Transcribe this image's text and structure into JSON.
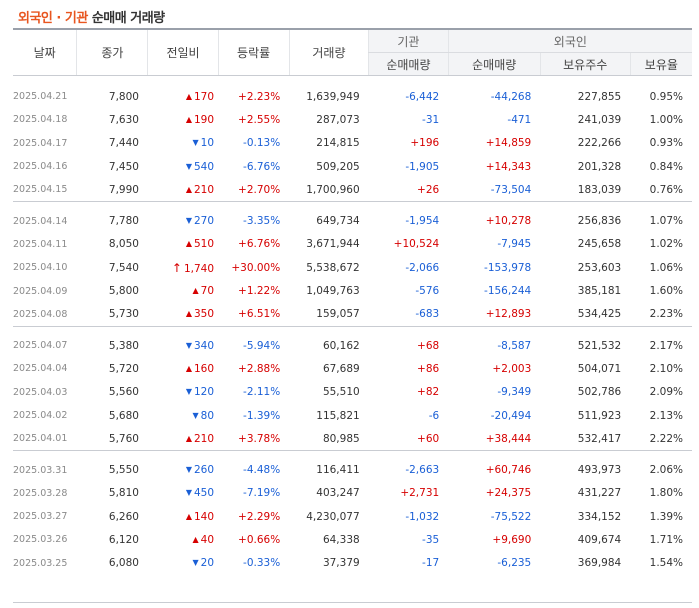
{
  "title": {
    "foreign_inst": "외국인 · 기관",
    "rest": "순매매 거래량"
  },
  "header": {
    "date": "날짜",
    "close": "종가",
    "change": "전일비",
    "rate": "등락률",
    "volume": "거래량",
    "institution": "기관",
    "foreign": "외국인",
    "inst_net": "순매매량",
    "foreign_net": "순매매량",
    "foreign_hold": "보유주수",
    "foreign_ratio": "보유율"
  },
  "colors": {
    "up": "#d60000",
    "down": "#1a5fd6",
    "title_accent": "#e8551f"
  },
  "icons": {
    "up": "triangle-up-icon",
    "down": "triangle-down-icon",
    "upper_limit": "upper-limit-arrow-icon"
  },
  "groups": [
    [
      {
        "date": "2025.04.21",
        "close": "7,800",
        "dir": "up",
        "change": "170",
        "rate": "+2.23%",
        "volume": "1,639,949",
        "inst": "-6,442",
        "foreign": "-44,268",
        "hold": "227,855",
        "ratio": "0.95%"
      },
      {
        "date": "2025.04.18",
        "close": "7,630",
        "dir": "up",
        "change": "190",
        "rate": "+2.55%",
        "volume": "287,073",
        "inst": "-31",
        "foreign": "-471",
        "hold": "241,039",
        "ratio": "1.00%"
      },
      {
        "date": "2025.04.17",
        "close": "7,440",
        "dir": "down",
        "change": "10",
        "rate": "-0.13%",
        "volume": "214,815",
        "inst": "+196",
        "foreign": "+14,859",
        "hold": "222,266",
        "ratio": "0.93%"
      },
      {
        "date": "2025.04.16",
        "close": "7,450",
        "dir": "down",
        "change": "540",
        "rate": "-6.76%",
        "volume": "509,205",
        "inst": "-1,905",
        "foreign": "+14,343",
        "hold": "201,328",
        "ratio": "0.84%"
      },
      {
        "date": "2025.04.15",
        "close": "7,990",
        "dir": "up",
        "change": "210",
        "rate": "+2.70%",
        "volume": "1,700,960",
        "inst": "+26",
        "foreign": "-73,504",
        "hold": "183,039",
        "ratio": "0.76%"
      }
    ],
    [
      {
        "date": "2025.04.14",
        "close": "7,780",
        "dir": "down",
        "change": "270",
        "rate": "-3.35%",
        "volume": "649,734",
        "inst": "-1,954",
        "foreign": "+10,278",
        "hold": "256,836",
        "ratio": "1.07%"
      },
      {
        "date": "2025.04.11",
        "close": "8,050",
        "dir": "up",
        "change": "510",
        "rate": "+6.76%",
        "volume": "3,671,944",
        "inst": "+10,524",
        "foreign": "-7,945",
        "hold": "245,658",
        "ratio": "1.02%"
      },
      {
        "date": "2025.04.10",
        "close": "7,540",
        "dir": "limit",
        "change": "1,740",
        "rate": "+30.00%",
        "volume": "5,538,672",
        "inst": "-2,066",
        "foreign": "-153,978",
        "hold": "253,603",
        "ratio": "1.06%"
      },
      {
        "date": "2025.04.09",
        "close": "5,800",
        "dir": "up",
        "change": "70",
        "rate": "+1.22%",
        "volume": "1,049,763",
        "inst": "-576",
        "foreign": "-156,244",
        "hold": "385,181",
        "ratio": "1.60%"
      },
      {
        "date": "2025.04.08",
        "close": "5,730",
        "dir": "up",
        "change": "350",
        "rate": "+6.51%",
        "volume": "159,057",
        "inst": "-683",
        "foreign": "+12,893",
        "hold": "534,425",
        "ratio": "2.23%"
      }
    ],
    [
      {
        "date": "2025.04.07",
        "close": "5,380",
        "dir": "down",
        "change": "340",
        "rate": "-5.94%",
        "volume": "60,162",
        "inst": "+68",
        "foreign": "-8,587",
        "hold": "521,532",
        "ratio": "2.17%"
      },
      {
        "date": "2025.04.04",
        "close": "5,720",
        "dir": "up",
        "change": "160",
        "rate": "+2.88%",
        "volume": "67,689",
        "inst": "+86",
        "foreign": "+2,003",
        "hold": "504,071",
        "ratio": "2.10%"
      },
      {
        "date": "2025.04.03",
        "close": "5,560",
        "dir": "down",
        "change": "120",
        "rate": "-2.11%",
        "volume": "55,510",
        "inst": "+82",
        "foreign": "-9,349",
        "hold": "502,786",
        "ratio": "2.09%"
      },
      {
        "date": "2025.04.02",
        "close": "5,680",
        "dir": "down",
        "change": "80",
        "rate": "-1.39%",
        "volume": "115,821",
        "inst": "-6",
        "foreign": "-20,494",
        "hold": "511,923",
        "ratio": "2.13%"
      },
      {
        "date": "2025.04.01",
        "close": "5,760",
        "dir": "up",
        "change": "210",
        "rate": "+3.78%",
        "volume": "80,985",
        "inst": "+60",
        "foreign": "+38,444",
        "hold": "532,417",
        "ratio": "2.22%"
      }
    ],
    [
      {
        "date": "2025.03.31",
        "close": "5,550",
        "dir": "down",
        "change": "260",
        "rate": "-4.48%",
        "volume": "116,411",
        "inst": "-2,663",
        "foreign": "+60,746",
        "hold": "493,973",
        "ratio": "2.06%"
      },
      {
        "date": "2025.03.28",
        "close": "5,810",
        "dir": "down",
        "change": "450",
        "rate": "-7.19%",
        "volume": "403,247",
        "inst": "+2,731",
        "foreign": "+24,375",
        "hold": "431,227",
        "ratio": "1.80%"
      },
      {
        "date": "2025.03.27",
        "close": "6,260",
        "dir": "up",
        "change": "140",
        "rate": "+2.29%",
        "volume": "4,230,077",
        "inst": "-1,032",
        "foreign": "-75,522",
        "hold": "334,152",
        "ratio": "1.39%"
      },
      {
        "date": "2025.03.26",
        "close": "6,120",
        "dir": "up",
        "change": "40",
        "rate": "+0.66%",
        "volume": "64,338",
        "inst": "-35",
        "foreign": "+9,690",
        "hold": "409,674",
        "ratio": "1.71%"
      },
      {
        "date": "2025.03.25",
        "close": "6,080",
        "dir": "down",
        "change": "20",
        "rate": "-0.33%",
        "volume": "37,379",
        "inst": "-17",
        "foreign": "-6,235",
        "hold": "369,984",
        "ratio": "1.54%"
      }
    ]
  ]
}
